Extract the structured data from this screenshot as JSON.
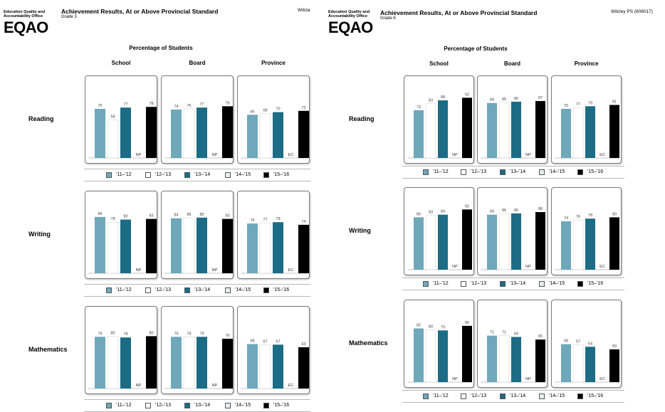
{
  "palette": {
    "s1112": "#6ea8ba",
    "s1213": "#ffffff",
    "s1314": "#1b6c84",
    "s1415": "#e6eff2",
    "s1516": "#000000"
  },
  "legend_items": [
    "'11–'12",
    "'12–'13",
    "'13–'14",
    "'14–'15",
    "'15–'16"
  ],
  "reports": [
    {
      "logo_org": "Education Quality and Accountability Office",
      "logo_mark": "EQAO",
      "title": "Achievement Results, At or Above Provincial Standard",
      "grade": "Grade 3",
      "school": "Wilcla",
      "pct_title": "Percentage of Students",
      "columns": [
        "School",
        "Board",
        "Province"
      ],
      "subjects": [
        "Reading",
        "Writing",
        "Mathematics"
      ]
    },
    {
      "logo_org": "Education Quality and Accountability Office",
      "logo_mark": "EQAO",
      "title": "Achievement Results, At or Above Provincial Standard",
      "grade": "Grade 6",
      "school": "Wilcley PS (608017)",
      "pct_title": "Percentage of Students",
      "columns": [
        "School",
        "Board",
        "Province"
      ],
      "subjects": [
        "Reading",
        "Writing",
        "Mathematics"
      ]
    }
  ],
  "chart_data": [
    {
      "type": "bar",
      "title": "Grade 3 Achievement Results, At or Above Provincial Standard",
      "series_names": [
        "'11–'12",
        "'12–'13",
        "'13–'14",
        "'14–'15",
        "'15–'16"
      ],
      "ylim": [
        0,
        100
      ],
      "panels": [
        {
          "subject": "Reading",
          "column": "School",
          "values": [
            75,
            58,
            77,
            null,
            78
          ],
          "labels": [
            "75",
            "58",
            "77",
            "NP",
            "78"
          ]
        },
        {
          "subject": "Reading",
          "column": "Board",
          "values": [
            74,
            75,
            77,
            null,
            79
          ],
          "labels": [
            "74",
            "75",
            "77",
            "NP",
            "79"
          ]
        },
        {
          "subject": "Reading",
          "column": "Province",
          "values": [
            66,
            68,
            70,
            null,
            72
          ],
          "labels": [
            "66",
            "68",
            "70",
            "EC",
            "72"
          ]
        },
        {
          "subject": "Writing",
          "column": "School",
          "values": [
            86,
            78,
            82,
            null,
            83
          ],
          "labels": [
            "86",
            "78",
            "82",
            "NP",
            "83"
          ]
        },
        {
          "subject": "Writing",
          "column": "Board",
          "values": [
            84,
            85,
            85,
            null,
            83
          ],
          "labels": [
            "84",
            "85",
            "85",
            "NP",
            "83"
          ]
        },
        {
          "subject": "Writing",
          "column": "Province",
          "values": [
            76,
            77,
            78,
            null,
            74
          ],
          "labels": [
            "76",
            "77",
            "78",
            "EC",
            "74"
          ]
        },
        {
          "subject": "Mathematics",
          "column": "School",
          "values": [
            79,
            80,
            78,
            null,
            80
          ],
          "labels": [
            "79",
            "80",
            "78",
            "NP",
            "80"
          ]
        },
        {
          "subject": "Mathematics",
          "column": "Board",
          "values": [
            79,
            79,
            79,
            null,
            76
          ],
          "labels": [
            "79",
            "79",
            "79",
            "NP",
            "76"
          ]
        },
        {
          "subject": "Mathematics",
          "column": "Province",
          "values": [
            68,
            67,
            67,
            null,
            63
          ],
          "labels": [
            "68",
            "67",
            "67",
            "EC",
            "63"
          ]
        }
      ]
    },
    {
      "type": "bar",
      "title": "Grade 6 Achievement Results, At or Above Provincial Standard",
      "series_names": [
        "'11–'12",
        "'12–'13",
        "'13–'14",
        "'14–'15",
        "'15–'16"
      ],
      "ylim": [
        0,
        100
      ],
      "panels": [
        {
          "subject": "Reading",
          "column": "School",
          "values": [
            73,
            83,
            88,
            null,
            92
          ],
          "labels": [
            "73",
            "83",
            "88",
            "NP",
            "92"
          ]
        },
        {
          "subject": "Reading",
          "column": "Board",
          "values": [
            84,
            85,
            86,
            null,
            87
          ],
          "labels": [
            "84",
            "85",
            "86",
            "NP",
            "87"
          ]
        },
        {
          "subject": "Reading",
          "column": "Province",
          "values": [
            75,
            77,
            79,
            null,
            81
          ],
          "labels": [
            "75",
            "77",
            "79",
            "EC",
            "81"
          ]
        },
        {
          "subject": "Writing",
          "column": "School",
          "values": [
            80,
            83,
            84,
            null,
            92
          ],
          "labels": [
            "80",
            "83",
            "84",
            "NP",
            "92"
          ]
        },
        {
          "subject": "Writing",
          "column": "Board",
          "values": [
            84,
            86,
            86,
            null,
            88
          ],
          "labels": [
            "84",
            "86",
            "86",
            "NP",
            "88"
          ]
        },
        {
          "subject": "Writing",
          "column": "Province",
          "values": [
            74,
            76,
            78,
            null,
            80
          ],
          "labels": [
            "74",
            "76",
            "78",
            "EC",
            "80"
          ]
        },
        {
          "subject": "Mathematics",
          "column": "School",
          "values": [
            82,
            80,
            79,
            null,
            86
          ],
          "labels": [
            "82",
            "80",
            "79",
            "NP",
            "86"
          ]
        },
        {
          "subject": "Mathematics",
          "column": "Board",
          "values": [
            71,
            71,
            69,
            null,
            65
          ],
          "labels": [
            "71",
            "71",
            "69",
            "NP",
            "65"
          ]
        },
        {
          "subject": "Mathematics",
          "column": "Province",
          "values": [
            58,
            57,
            54,
            null,
            50
          ],
          "labels": [
            "58",
            "57",
            "54",
            "EC",
            "50"
          ]
        }
      ]
    }
  ]
}
